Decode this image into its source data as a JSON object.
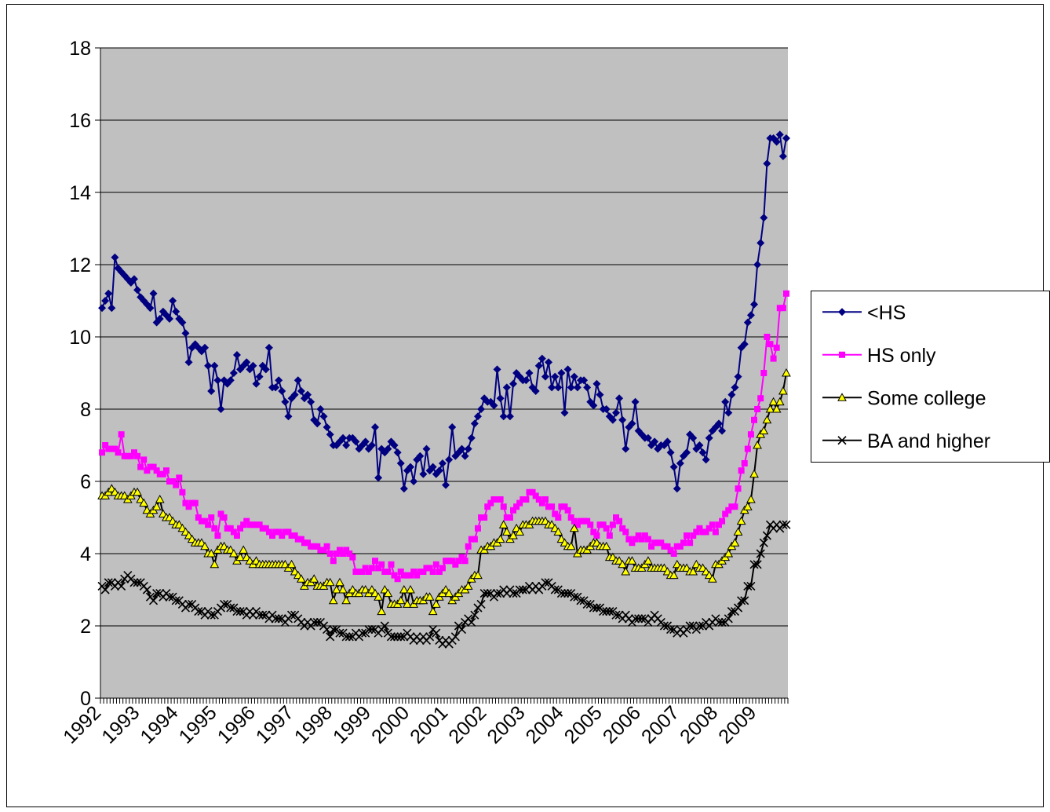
{
  "chart_data": {
    "type": "line",
    "categories": [
      "1992",
      null,
      null,
      null,
      null,
      null,
      null,
      null,
      null,
      null,
      null,
      null,
      "1993",
      null,
      null,
      null,
      null,
      null,
      null,
      null,
      null,
      null,
      null,
      null,
      "1994",
      null,
      null,
      null,
      null,
      null,
      null,
      null,
      null,
      null,
      null,
      null,
      "1995",
      null,
      null,
      null,
      null,
      null,
      null,
      null,
      null,
      null,
      null,
      null,
      "1996",
      null,
      null,
      null,
      null,
      null,
      null,
      null,
      null,
      null,
      null,
      null,
      "1997",
      null,
      null,
      null,
      null,
      null,
      null,
      null,
      null,
      null,
      null,
      null,
      "1998",
      null,
      null,
      null,
      null,
      null,
      null,
      null,
      null,
      null,
      null,
      null,
      "1999",
      null,
      null,
      null,
      null,
      null,
      null,
      null,
      null,
      null,
      null,
      null,
      "2000",
      null,
      null,
      null,
      null,
      null,
      null,
      null,
      null,
      null,
      null,
      null,
      "2001",
      null,
      null,
      null,
      null,
      null,
      null,
      null,
      null,
      null,
      null,
      null,
      "2002",
      null,
      null,
      null,
      null,
      null,
      null,
      null,
      null,
      null,
      null,
      null,
      "2003",
      null,
      null,
      null,
      null,
      null,
      null,
      null,
      null,
      null,
      null,
      null,
      "2004",
      null,
      null,
      null,
      null,
      null,
      null,
      null,
      null,
      null,
      null,
      null,
      "2005",
      null,
      null,
      null,
      null,
      null,
      null,
      null,
      null,
      null,
      null,
      null,
      "2006",
      null,
      null,
      null,
      null,
      null,
      null,
      null,
      null,
      null,
      null,
      null,
      "2007",
      null,
      null,
      null,
      null,
      null,
      null,
      null,
      null,
      null,
      null,
      null,
      "2008",
      null,
      null,
      null,
      null,
      null,
      null,
      null,
      null,
      null,
      null,
      null,
      "2009",
      null,
      null,
      null,
      null,
      null,
      null,
      null,
      null,
      null
    ],
    "series": [
      {
        "name": "<HS",
        "color": "#000080",
        "marker": "diamond",
        "marker_color": "#000080",
        "values": [
          10.8,
          11.0,
          11.2,
          10.8,
          12.2,
          11.9,
          11.8,
          11.7,
          11.6,
          11.5,
          11.6,
          11.3,
          11.1,
          11.0,
          10.9,
          10.8,
          11.2,
          10.4,
          10.5,
          10.7,
          10.6,
          10.5,
          11.0,
          10.7,
          10.5,
          10.4,
          10.1,
          9.3,
          9.7,
          9.8,
          9.7,
          9.6,
          9.7,
          9.2,
          8.5,
          9.2,
          8.8,
          8.0,
          8.8,
          8.7,
          8.8,
          9.0,
          9.5,
          9.1,
          9.2,
          9.3,
          9.1,
          9.2,
          8.7,
          8.9,
          9.2,
          9.1,
          9.7,
          8.6,
          8.6,
          8.8,
          8.5,
          8.2,
          7.8,
          8.3,
          8.4,
          8.8,
          8.5,
          8.3,
          8.4,
          8.2,
          7.7,
          7.6,
          8.0,
          7.8,
          7.5,
          7.3,
          7.0,
          7.0,
          7.1,
          7.2,
          7.0,
          7.2,
          7.2,
          7.1,
          6.9,
          7.0,
          7.1,
          6.9,
          7.0,
          7.5,
          6.1,
          6.9,
          6.8,
          6.9,
          7.1,
          7.0,
          6.8,
          6.5,
          5.8,
          6.3,
          6.4,
          6.0,
          6.6,
          6.7,
          6.2,
          6.9,
          6.3,
          6.4,
          6.2,
          6.3,
          6.5,
          5.9,
          6.6,
          7.5,
          6.7,
          6.8,
          6.9,
          6.7,
          6.9,
          7.2,
          7.6,
          7.8,
          8.0,
          8.3,
          8.2,
          8.2,
          8.1,
          9.1,
          8.3,
          7.8,
          8.6,
          7.8,
          8.7,
          9.0,
          8.9,
          8.8,
          8.8,
          9.0,
          8.6,
          8.5,
          9.2,
          9.4,
          8.9,
          9.3,
          8.6,
          8.9,
          8.6,
          9.0,
          7.9,
          9.1,
          8.6,
          8.9,
          8.6,
          8.8,
          8.8,
          8.6,
          8.2,
          8.1,
          8.7,
          8.4,
          8.0,
          8.0,
          7.8,
          7.7,
          7.9,
          8.3,
          7.7,
          6.9,
          7.5,
          7.6,
          8.2,
          7.4,
          7.3,
          7.2,
          7.2,
          7.0,
          7.1,
          6.9,
          7.0,
          7.0,
          7.1,
          6.8,
          6.4,
          5.8,
          6.5,
          6.7,
          6.8,
          7.3,
          7.2,
          6.9,
          7.0,
          6.8,
          6.6,
          7.2,
          7.4,
          7.5,
          7.6,
          7.4,
          8.2,
          7.9,
          8.4,
          8.6,
          8.9,
          9.7,
          9.8,
          10.4,
          10.6,
          10.9,
          12.0,
          12.6,
          13.3,
          14.8,
          15.5,
          15.5,
          15.4,
          15.6,
          15.0,
          15.5
        ]
      },
      {
        "name": "HS only",
        "color": "#FF00FF",
        "marker": "square",
        "marker_color": "#FF00FF",
        "values": [
          6.8,
          7.0,
          6.9,
          6.9,
          6.9,
          6.8,
          7.3,
          6.7,
          6.7,
          6.7,
          6.8,
          6.7,
          6.4,
          6.6,
          6.3,
          6.4,
          6.4,
          6.3,
          6.2,
          6.2,
          6.3,
          6.0,
          6.0,
          5.9,
          6.1,
          5.7,
          5.4,
          5.3,
          5.4,
          5.4,
          5.0,
          4.9,
          4.9,
          4.8,
          5.0,
          4.7,
          4.5,
          5.1,
          5.0,
          4.7,
          4.7,
          4.6,
          4.5,
          4.7,
          4.8,
          4.9,
          4.8,
          4.8,
          4.8,
          4.8,
          4.7,
          4.7,
          4.6,
          4.5,
          4.6,
          4.6,
          4.5,
          4.6,
          4.6,
          4.5,
          4.5,
          4.4,
          4.4,
          4.3,
          4.3,
          4.2,
          4.2,
          4.2,
          4.1,
          4.1,
          4.2,
          4.0,
          3.8,
          4.0,
          4.1,
          4.0,
          4.1,
          4.0,
          3.9,
          3.5,
          3.5,
          3.5,
          3.6,
          3.5,
          3.6,
          3.8,
          3.6,
          3.7,
          3.5,
          3.5,
          3.7,
          3.4,
          3.3,
          3.5,
          3.4,
          3.4,
          3.4,
          3.5,
          3.4,
          3.5,
          3.5,
          3.6,
          3.6,
          3.5,
          3.7,
          3.5,
          3.6,
          3.8,
          3.8,
          3.8,
          3.7,
          3.8,
          3.9,
          3.8,
          4.2,
          4.4,
          4.4,
          4.7,
          5.0,
          5.0,
          5.3,
          5.4,
          5.5,
          5.5,
          5.5,
          5.3,
          5.0,
          5.0,
          5.2,
          5.3,
          5.4,
          5.5,
          5.5,
          5.7,
          5.7,
          5.6,
          5.5,
          5.4,
          5.5,
          5.3,
          5.3,
          5.1,
          5.0,
          5.3,
          5.3,
          5.2,
          5.0,
          4.9,
          4.8,
          4.9,
          4.9,
          4.9,
          4.8,
          4.6,
          4.5,
          4.8,
          4.8,
          4.7,
          4.5,
          4.8,
          5.0,
          4.9,
          4.7,
          4.6,
          4.4,
          4.3,
          4.4,
          4.5,
          4.4,
          4.5,
          4.4,
          4.2,
          4.3,
          4.3,
          4.3,
          4.2,
          4.2,
          4.1,
          4.0,
          4.2,
          4.2,
          4.3,
          4.5,
          4.3,
          4.5,
          4.6,
          4.7,
          4.6,
          4.6,
          4.7,
          4.8,
          4.6,
          4.8,
          4.9,
          5.1,
          5.2,
          5.3,
          5.3,
          5.8,
          6.3,
          6.5,
          6.9,
          7.3,
          7.7,
          8.0,
          8.3,
          9.0,
          10.0,
          9.8,
          9.4,
          9.7,
          10.8,
          10.8,
          11.2
        ]
      },
      {
        "name": "Some college",
        "color": "#000000",
        "marker": "triangle",
        "marker_color": "#FFFF00",
        "values": [
          5.6,
          5.6,
          5.7,
          5.8,
          5.7,
          5.6,
          5.6,
          5.6,
          5.5,
          5.6,
          5.7,
          5.7,
          5.5,
          5.4,
          5.2,
          5.1,
          5.2,
          5.3,
          5.5,
          5.1,
          5.0,
          5.0,
          4.9,
          4.8,
          4.8,
          4.7,
          4.6,
          4.5,
          4.4,
          4.3,
          4.3,
          4.3,
          4.2,
          4.0,
          4.0,
          3.7,
          4.1,
          4.2,
          4.2,
          4.1,
          4.1,
          4.0,
          3.8,
          3.9,
          4.1,
          3.9,
          3.8,
          3.7,
          3.8,
          3.7,
          3.7,
          3.7,
          3.7,
          3.7,
          3.7,
          3.7,
          3.7,
          3.7,
          3.6,
          3.7,
          3.5,
          3.4,
          3.3,
          3.1,
          3.2,
          3.2,
          3.3,
          3.1,
          3.1,
          3.1,
          3.2,
          3.2,
          2.7,
          3.0,
          3.2,
          3.0,
          2.7,
          2.9,
          3.0,
          2.9,
          2.9,
          3.0,
          3.0,
          2.9,
          3.0,
          2.9,
          2.8,
          2.4,
          3.0,
          2.9,
          2.6,
          2.6,
          2.6,
          2.7,
          3.0,
          2.6,
          3.0,
          2.6,
          2.7,
          2.7,
          2.7,
          2.8,
          2.8,
          2.4,
          2.6,
          2.8,
          2.9,
          3.0,
          2.9,
          2.7,
          2.8,
          2.9,
          3.0,
          3.0,
          3.1,
          3.3,
          3.4,
          3.4,
          4.1,
          4.1,
          4.2,
          4.2,
          4.3,
          4.3,
          4.4,
          4.8,
          4.6,
          4.4,
          4.5,
          4.7,
          4.6,
          4.8,
          4.8,
          4.8,
          4.9,
          4.9,
          4.9,
          4.9,
          4.9,
          4.8,
          4.8,
          4.7,
          4.6,
          4.4,
          4.3,
          4.2,
          4.2,
          4.7,
          4.0,
          4.1,
          4.1,
          4.1,
          4.2,
          4.3,
          4.3,
          4.2,
          4.2,
          4.2,
          3.9,
          3.9,
          3.8,
          3.8,
          3.7,
          3.5,
          3.8,
          3.8,
          3.6,
          3.6,
          3.6,
          3.7,
          3.8,
          3.6,
          3.6,
          3.6,
          3.6,
          3.6,
          3.5,
          3.4,
          3.4,
          3.7,
          3.6,
          3.6,
          3.6,
          3.5,
          3.5,
          3.7,
          3.6,
          3.6,
          3.5,
          3.4,
          3.3,
          3.7,
          3.7,
          3.8,
          3.9,
          4.0,
          4.2,
          4.3,
          4.6,
          4.9,
          5.2,
          5.3,
          5.5,
          6.2,
          7.0,
          7.3,
          7.4,
          7.7,
          8.0,
          8.2,
          8.0,
          8.2,
          8.5,
          9.0
        ]
      },
      {
        "name": "BA and higher",
        "color": "#000000",
        "marker": "x",
        "marker_color": "#000000",
        "values": [
          3.1,
          3.0,
          3.2,
          3.2,
          3.1,
          3.2,
          3.1,
          3.3,
          3.4,
          3.3,
          3.2,
          3.2,
          3.2,
          3.1,
          3.0,
          2.8,
          2.7,
          2.9,
          2.9,
          2.8,
          2.9,
          2.8,
          2.8,
          2.7,
          2.7,
          2.6,
          2.5,
          2.6,
          2.6,
          2.5,
          2.4,
          2.4,
          2.3,
          2.4,
          2.3,
          2.3,
          2.4,
          2.5,
          2.6,
          2.6,
          2.5,
          2.5,
          2.4,
          2.4,
          2.4,
          2.3,
          2.4,
          2.3,
          2.4,
          2.3,
          2.3,
          2.3,
          2.2,
          2.3,
          2.2,
          2.2,
          2.2,
          2.1,
          2.2,
          2.3,
          2.3,
          2.2,
          2.1,
          2.0,
          2.1,
          2.0,
          2.1,
          2.1,
          2.1,
          2.0,
          1.9,
          1.7,
          1.9,
          1.9,
          1.8,
          1.8,
          1.7,
          1.7,
          1.7,
          1.8,
          1.7,
          1.8,
          1.8,
          1.9,
          1.9,
          1.9,
          1.8,
          1.9,
          2.0,
          1.8,
          1.7,
          1.7,
          1.7,
          1.7,
          1.7,
          1.8,
          1.7,
          1.6,
          1.7,
          1.6,
          1.7,
          1.6,
          1.7,
          1.9,
          1.8,
          1.6,
          1.5,
          1.6,
          1.5,
          1.6,
          1.7,
          2.0,
          1.9,
          2.1,
          2.2,
          2.1,
          2.3,
          2.5,
          2.6,
          2.9,
          2.9,
          2.9,
          2.8,
          2.9,
          2.9,
          3.0,
          2.9,
          3.0,
          2.9,
          2.9,
          3.0,
          3.0,
          3.0,
          3.1,
          3.0,
          3.1,
          3.0,
          3.1,
          3.2,
          3.2,
          3.1,
          3.0,
          3.0,
          2.9,
          2.9,
          2.9,
          2.9,
          2.8,
          2.8,
          2.7,
          2.7,
          2.6,
          2.6,
          2.5,
          2.5,
          2.5,
          2.4,
          2.4,
          2.4,
          2.4,
          2.3,
          2.3,
          2.2,
          2.3,
          2.2,
          2.1,
          2.2,
          2.2,
          2.2,
          2.2,
          2.1,
          2.2,
          2.3,
          2.2,
          2.1,
          2.0,
          2.0,
          1.9,
          1.9,
          1.8,
          1.9,
          1.8,
          1.9,
          2.0,
          2.0,
          1.9,
          2.0,
          2.0,
          2.1,
          2.0,
          2.1,
          2.2,
          2.1,
          2.1,
          2.1,
          2.2,
          2.4,
          2.4,
          2.5,
          2.7,
          2.7,
          3.1,
          3.1,
          3.7,
          3.7,
          4.0,
          4.3,
          4.5,
          4.8,
          4.7,
          4.8,
          4.7,
          4.8,
          4.8
        ]
      }
    ],
    "ylim": [
      0,
      18
    ],
    "yticks": [
      0,
      2,
      4,
      6,
      8,
      10,
      12,
      14,
      16,
      18
    ],
    "grid": true,
    "legend": "right",
    "plot_background": "#C0C0C0"
  }
}
